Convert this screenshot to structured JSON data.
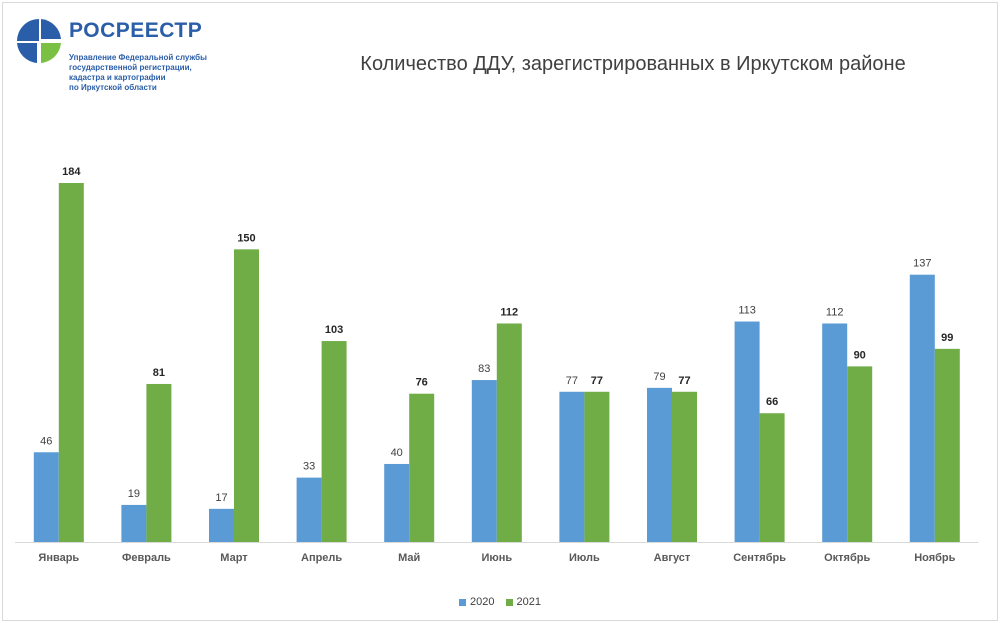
{
  "header": {
    "org_name": "РОСРЕЕСТР",
    "org_sub": [
      "Управление Федеральной службы",
      "государственной регистрации,",
      "кадастра и картографии",
      "по Иркутской области"
    ]
  },
  "colors": {
    "series_2020": "#5b9bd5",
    "series_2021": "#70ad47",
    "logo_blue": "#2a5ea8",
    "logo_green": "#7ac143"
  },
  "chart_data": {
    "type": "bar",
    "title": "Количество ДДУ, зарегистрированных в Иркутском районе",
    "categories": [
      "Январь",
      "Февраль",
      "Март",
      "Апрель",
      "Май",
      "Июнь",
      "Июль",
      "Август",
      "Сентябрь",
      "Октябрь",
      "Ноябрь"
    ],
    "series": [
      {
        "name": "2020",
        "values": [
          46,
          19,
          17,
          33,
          40,
          83,
          77,
          79,
          113,
          112,
          137
        ]
      },
      {
        "name": "2021",
        "values": [
          184,
          81,
          150,
          103,
          76,
          112,
          77,
          77,
          66,
          90,
          99
        ]
      }
    ],
    "ylim": [
      0,
      184
    ],
    "grid": false,
    "legend": "bottom",
    "data_labels": true
  }
}
